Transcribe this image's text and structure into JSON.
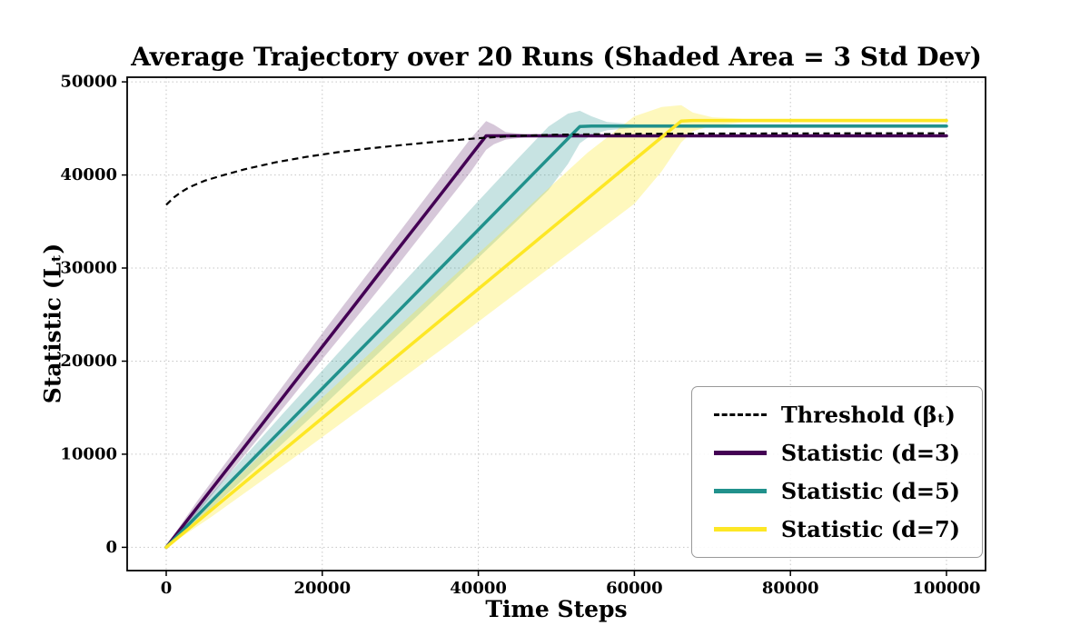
{
  "chart_data": {
    "type": "line",
    "title": "Average Trajectory over 20 Runs (Shaded Area = 3 Std Dev)",
    "xlabel": "Time Steps",
    "ylabel": "Statistic (Lₜ)",
    "xlim": [
      -5000,
      105000
    ],
    "ylim": [
      -2500,
      50500
    ],
    "x_ticks": [
      0,
      20000,
      40000,
      60000,
      80000,
      100000
    ],
    "y_ticks": [
      0,
      10000,
      20000,
      30000,
      40000,
      50000
    ],
    "grid": "dotted",
    "legend_position": "lower right",
    "threshold": {
      "label": "Threshold (βₜ)",
      "color": "#000000",
      "style": "dashed",
      "x": [
        0,
        1000,
        2000,
        3000,
        5000,
        7000,
        10000,
        14000,
        18000,
        22000,
        26000,
        30000,
        35000,
        40000,
        45000,
        50000,
        60000,
        70000,
        85000,
        100000
      ],
      "y": [
        36800,
        37600,
        38200,
        38700,
        39400,
        39900,
        40600,
        41350,
        41950,
        42450,
        42850,
        43200,
        43600,
        43950,
        44200,
        44330,
        44420,
        44450,
        44470,
        44480
      ]
    },
    "series": [
      {
        "id": "d3",
        "label": "Statistic (d=3)",
        "color": "#440154",
        "band_color": "rgba(68,1,84,0.22)",
        "x": [
          0,
          4000,
          8000,
          12000,
          16000,
          20000,
          24000,
          28000,
          32000,
          36000,
          39000,
          41000,
          42000,
          43500,
          46000,
          50000,
          100000
        ],
        "mean": [
          0,
          4300,
          8600,
          12900,
          17250,
          21550,
          25850,
          30200,
          34500,
          38800,
          42050,
          44200,
          44200,
          44200,
          44200,
          44200,
          44200
        ],
        "upper": [
          150,
          5000,
          9500,
          14000,
          18500,
          23000,
          27400,
          31800,
          36200,
          40600,
          43900,
          45800,
          45400,
          44600,
          44350,
          44300,
          44300
        ],
        "lower": [
          0,
          3700,
          7800,
          11900,
          16000,
          20200,
          24300,
          28500,
          32800,
          37100,
          40300,
          42700,
          43300,
          43800,
          44050,
          44100,
          44100
        ]
      },
      {
        "id": "d5",
        "label": "Statistic (d=5)",
        "color": "#21918c",
        "band_color": "rgba(33,145,140,0.25)",
        "x": [
          0,
          5000,
          10000,
          15000,
          20000,
          25000,
          30000,
          35000,
          40000,
          45000,
          49000,
          51500,
          53000,
          54500,
          56500,
          60000,
          100000
        ],
        "mean": [
          0,
          4260,
          8530,
          12790,
          17060,
          21320,
          25580,
          29850,
          34110,
          38380,
          41790,
          43920,
          45200,
          45250,
          45250,
          45250,
          45250
        ],
        "upper": [
          150,
          5000,
          9700,
          14400,
          19000,
          23600,
          28100,
          32600,
          37200,
          41700,
          45200,
          46600,
          46900,
          46300,
          45700,
          45450,
          45450
        ],
        "lower": [
          0,
          3600,
          7400,
          11200,
          15100,
          19100,
          23100,
          27100,
          31100,
          35100,
          38400,
          41200,
          43400,
          44300,
          44800,
          45050,
          45050
        ]
      },
      {
        "id": "d7",
        "label": "Statistic (d=7)",
        "color": "#fde725",
        "band_color": "rgba(253,231,37,0.30)",
        "x": [
          0,
          6000,
          12000,
          18000,
          24000,
          30000,
          36000,
          42000,
          48000,
          54000,
          60000,
          63500,
          66000,
          67500,
          70000,
          74000,
          100000
        ],
        "mean": [
          0,
          4160,
          8330,
          12490,
          16650,
          20820,
          24980,
          29140,
          33310,
          37470,
          41630,
          44060,
          45800,
          45850,
          45850,
          45850,
          45850
        ],
        "upper": [
          150,
          5000,
          9800,
          14500,
          19200,
          23900,
          28500,
          33100,
          37800,
          42400,
          46300,
          47300,
          47500,
          46700,
          46200,
          46050,
          46050
        ],
        "lower": [
          0,
          3400,
          7000,
          10600,
          14300,
          18000,
          21700,
          25500,
          29300,
          33100,
          36900,
          40400,
          43500,
          44700,
          45300,
          45650,
          45650
        ]
      }
    ]
  }
}
